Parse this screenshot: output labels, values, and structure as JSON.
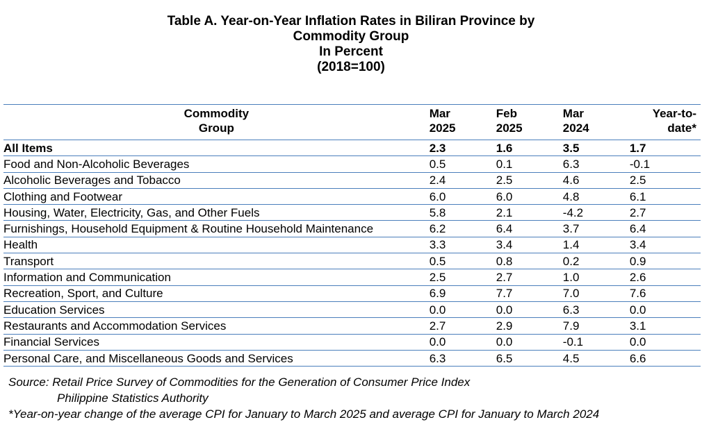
{
  "title": {
    "line1": "Table A. Year-on-Year Inflation Rates in Biliran Province by",
    "line2": "Commodity Group",
    "line3": "In Percent",
    "line4": "(2018=100)"
  },
  "table": {
    "headers": {
      "group_line1": "Commodity",
      "group_line2": "Group",
      "col1_line1": "Mar",
      "col1_line2": "2025",
      "col2_line1": "Feb",
      "col2_line2": "2025",
      "col3_line1": "Mar",
      "col3_line2": "2024",
      "col4_line1": "Year-to-",
      "col4_line2": "date*"
    },
    "rows": [
      {
        "name": "All Items",
        "mar2025": "2.3",
        "feb2025": "1.6",
        "mar2024": "3.5",
        "ytd": "1.7"
      },
      {
        "name": "Food and Non-Alcoholic Beverages",
        "mar2025": "0.5",
        "feb2025": "0.1",
        "mar2024": "6.3",
        "ytd": "-0.1"
      },
      {
        "name": "Alcoholic Beverages and Tobacco",
        "mar2025": "2.4",
        "feb2025": "2.5",
        "mar2024": "4.6",
        "ytd": "2.5"
      },
      {
        "name": "Clothing and Footwear",
        "mar2025": "6.0",
        "feb2025": "6.0",
        "mar2024": "4.8",
        "ytd": "6.1"
      },
      {
        "name": "Housing, Water, Electricity, Gas, and Other Fuels",
        "mar2025": "5.8",
        "feb2025": "2.1",
        "mar2024": "-4.2",
        "ytd": "2.7"
      },
      {
        "name": "Furnishings, Household Equipment & Routine Household Maintenance",
        "mar2025": "6.2",
        "feb2025": "6.4",
        "mar2024": "3.7",
        "ytd": "6.4"
      },
      {
        "name": "Health",
        "mar2025": "3.3",
        "feb2025": "3.4",
        "mar2024": "1.4",
        "ytd": "3.4"
      },
      {
        "name": "Transport",
        "mar2025": "0.5",
        "feb2025": "0.8",
        "mar2024": "0.2",
        "ytd": "0.9"
      },
      {
        "name": "Information and Communication",
        "mar2025": "2.5",
        "feb2025": "2.7",
        "mar2024": "1.0",
        "ytd": "2.6"
      },
      {
        "name": "Recreation, Sport, and Culture",
        "mar2025": "6.9",
        "feb2025": "7.7",
        "mar2024": "7.0",
        "ytd": "7.6"
      },
      {
        "name": "Education Services",
        "mar2025": "0.0",
        "feb2025": "0.0",
        "mar2024": "6.3",
        "ytd": "0.0"
      },
      {
        "name": "Restaurants and Accommodation Services",
        "mar2025": "2.7",
        "feb2025": "2.9",
        "mar2024": "7.9",
        "ytd": "3.1"
      },
      {
        "name": "Financial Services",
        "mar2025": "0.0",
        "feb2025": "0.0",
        "mar2024": "-0.1",
        "ytd": "0.0"
      },
      {
        "name": "Personal Care, and Miscellaneous Goods and Services",
        "mar2025": "6.3",
        "feb2025": "6.5",
        "mar2024": "4.5",
        "ytd": "6.6"
      }
    ]
  },
  "notes": {
    "source_line1": "Source: Retail Price Survey of Commodities for the Generation of Consumer Price Index",
    "source_line2": "Philippine Statistics Authority",
    "footnote": "*Year-on-year change of the average CPI for January to March 2025 and average CPI for January to March 2024"
  }
}
